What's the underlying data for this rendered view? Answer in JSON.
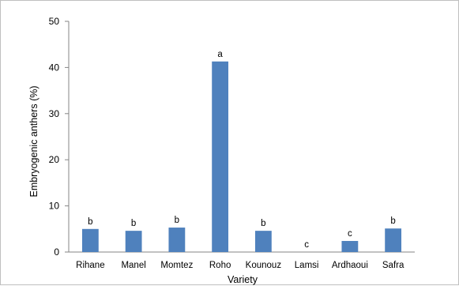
{
  "chart_data": {
    "type": "bar",
    "title": "",
    "xlabel": "Variety",
    "ylabel": "Embryogenic anthers (%)",
    "ylim": [
      0,
      50
    ],
    "yticks": [
      0,
      10,
      20,
      30,
      40,
      50
    ],
    "categories": [
      "Rihane",
      "Manel",
      "Momtez",
      "Roho",
      "Kounouz",
      "Lamsi",
      "Ardhaoui",
      "Safra"
    ],
    "values": [
      5.0,
      4.6,
      5.3,
      41.3,
      4.6,
      0,
      2.4,
      5.1
    ],
    "data_labels": [
      "b",
      "b",
      "b",
      "a",
      "b",
      "c",
      "c",
      "b"
    ],
    "bar_color": "#4f81bd",
    "grid": false,
    "legend": "none"
  }
}
